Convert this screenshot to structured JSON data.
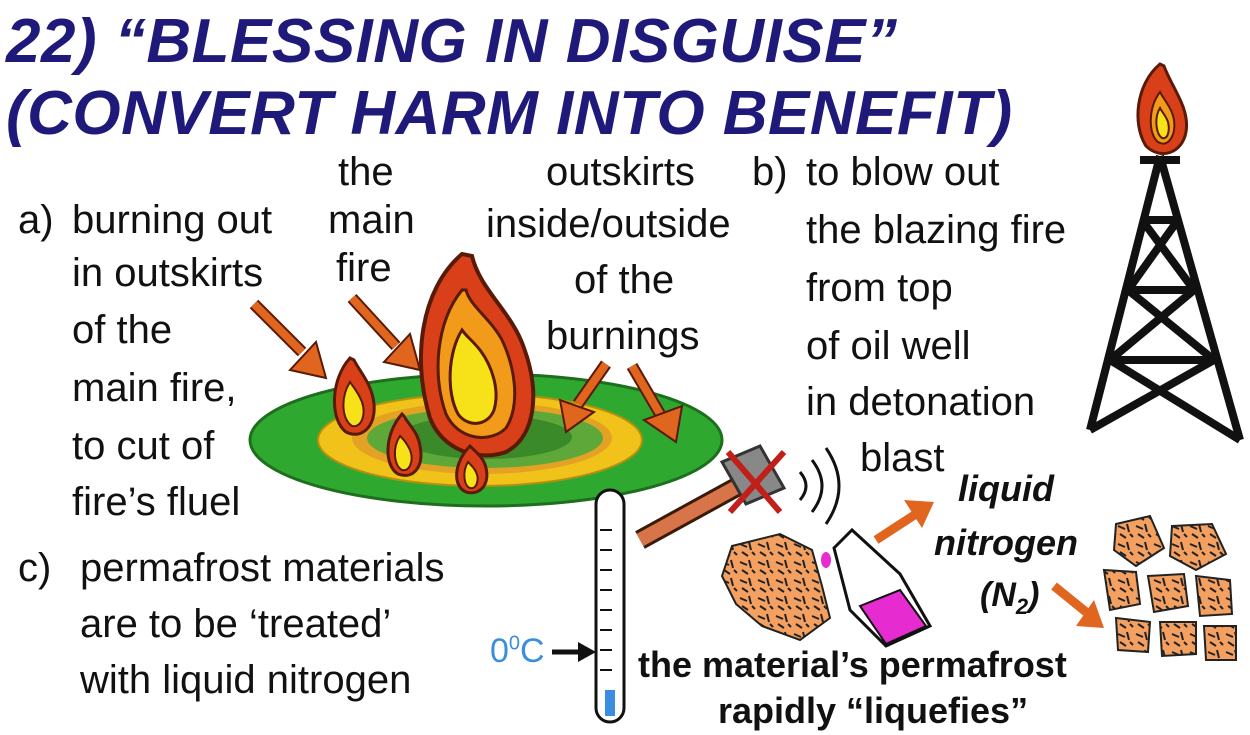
{
  "title": {
    "line1": "22) “BLESSING IN DISGUISE”",
    "line2": "(CONVERT HARM INTO BENEFIT)"
  },
  "section_a": {
    "marker": "a)",
    "lines": [
      "burning out",
      "in outskirts",
      "of the",
      "main fire,",
      "to cut of",
      "fire’s fluel"
    ]
  },
  "label_main_fire": [
    "the",
    "main",
    "fire"
  ],
  "label_outskirts": [
    "outskirts",
    "inside/outside",
    "of the",
    "burnings"
  ],
  "section_b": {
    "marker": "b)",
    "lines": [
      "to blow out",
      "the blazing fire",
      "from top",
      "of oil well",
      "in detonation",
      "blast"
    ]
  },
  "section_c": {
    "marker": "c)",
    "lines": [
      "permafrost materials",
      "are to be  ‘treated’",
      "with liquid nitrogen"
    ]
  },
  "thermometer_label": {
    "value": "0",
    "superscript": "0",
    "unit": "C"
  },
  "liquid_nitrogen": {
    "line1": "liquid",
    "line2": "nitrogen",
    "formula": "(N",
    "subscript": "2",
    "close": ")"
  },
  "result": {
    "line1": "the material’s permafrost",
    "line2": "rapidly “liquefies”"
  },
  "colors": {
    "title": "#1f1a7a",
    "flame_outer": "#d9401a",
    "flame_mid": "#f29a1a",
    "flame_inner": "#f7e21a",
    "ring_green": "#2fa82f",
    "ring_yellow": "#f0c21a",
    "arrow": "#e0651e",
    "flask_liquid": "#e62bd0",
    "temp_blue": "#3a8de0"
  }
}
